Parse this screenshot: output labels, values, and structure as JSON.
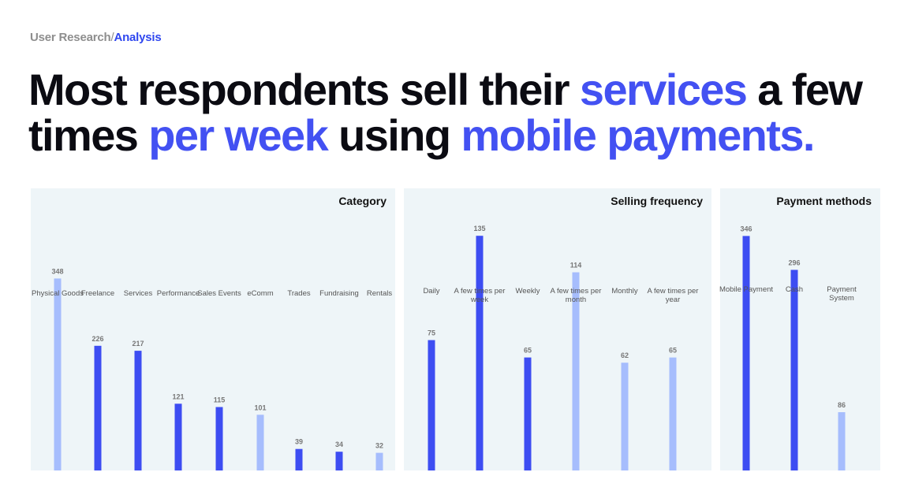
{
  "breadcrumb": {
    "parent": "User Research",
    "separator": "/",
    "current": "Analysis"
  },
  "headline": {
    "segments": [
      {
        "text": "Most respondents sell their ",
        "highlight": false
      },
      {
        "text": "services",
        "highlight": true
      },
      {
        "text": " a few times ",
        "highlight": false
      },
      {
        "text": "per week",
        "highlight": true
      },
      {
        "text": " using ",
        "highlight": false
      },
      {
        "text": "mobile payments.",
        "highlight": true
      }
    ]
  },
  "colors": {
    "dark_bar": "#3d4df2",
    "light_bar": "#a6bdfd",
    "highlight_text": "#4351f2",
    "panel_bg": "#eef5f8"
  },
  "chart_data": [
    {
      "type": "bar",
      "title": "Category",
      "categories": [
        "Physical Goods",
        "Freelance",
        "Services",
        "Performance",
        "Sales Events",
        "eComm",
        "Trades",
        "Fundraising",
        "Rentals"
      ],
      "values": [
        348,
        226,
        217,
        121,
        115,
        101,
        39,
        34,
        32
      ],
      "bar_tones": [
        "light",
        "dark",
        "dark",
        "dark",
        "dark",
        "light",
        "dark",
        "dark",
        "light"
      ],
      "ylim": [
        0,
        350
      ],
      "grid": false,
      "legend": "none"
    },
    {
      "type": "bar",
      "title": "Selling frequency",
      "categories": [
        "Daily",
        "A few times per week",
        "Weekly",
        "A few times per month",
        "Monthly",
        "A few times per year"
      ],
      "values": [
        75,
        135,
        65,
        114,
        62,
        65
      ],
      "bar_tones": [
        "dark",
        "dark",
        "dark",
        "light",
        "light",
        "light"
      ],
      "ylim": [
        0,
        136
      ],
      "grid": false,
      "legend": "none"
    },
    {
      "type": "bar",
      "title": "Payment methods",
      "categories": [
        "Mobile Payment",
        "Cash",
        "Payment System"
      ],
      "values": [
        346,
        296,
        86
      ],
      "bar_tones": [
        "dark",
        "dark",
        "light"
      ],
      "ylim": [
        0,
        350
      ],
      "grid": false,
      "legend": "none"
    }
  ]
}
